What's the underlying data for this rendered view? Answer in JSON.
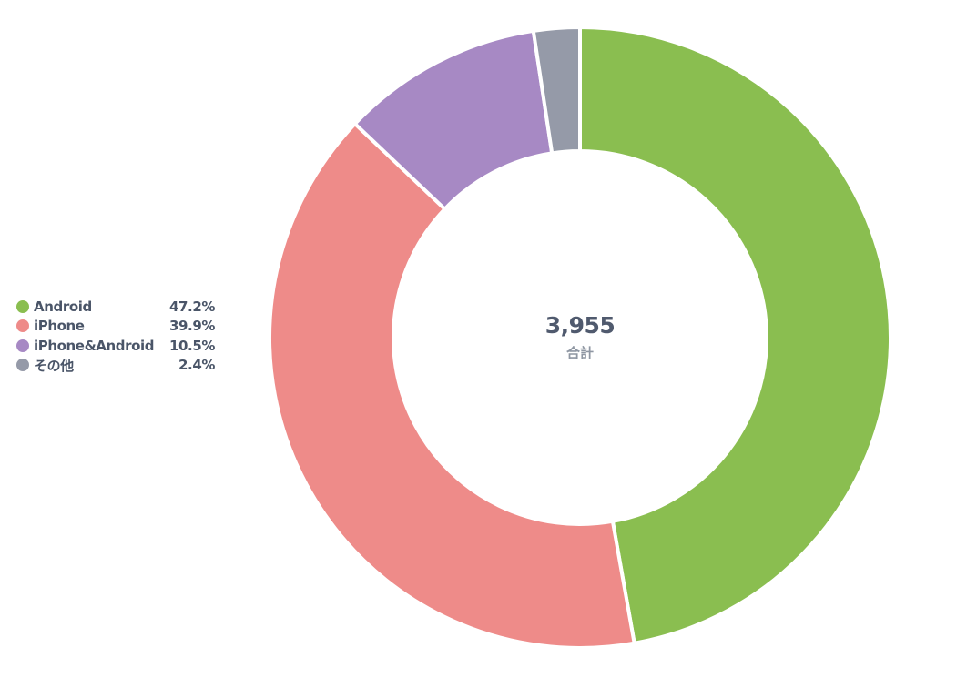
{
  "chart_data": {
    "type": "pie",
    "variant": "donut",
    "categories": [
      "Android",
      "iPhone",
      "iPhone&Android",
      "その他"
    ],
    "values": [
      47.2,
      39.9,
      10.5,
      2.4
    ],
    "value_labels": [
      "47.2%",
      "39.9%",
      "10.5%",
      "2.4%"
    ],
    "colors": [
      "#8abe50",
      "#ee8b89",
      "#a789c4",
      "#959aa8"
    ],
    "total": "3,955",
    "total_label": "合計",
    "legend_position": "left"
  }
}
